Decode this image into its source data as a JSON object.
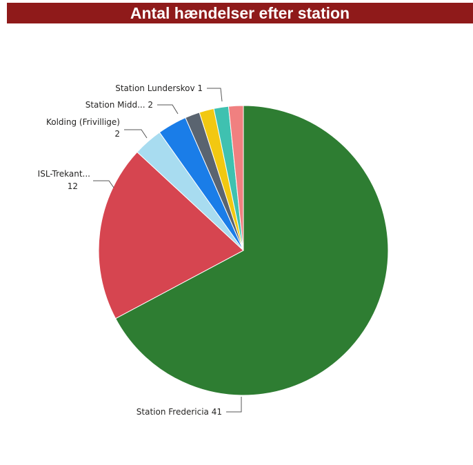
{
  "chart_data": {
    "type": "pie",
    "title": "Antal hændelser efter station",
    "slices": [
      {
        "label": "Station Fredericia",
        "value": 41,
        "color": "#2e7d32",
        "label_text": "Station Fredericia 41",
        "label_line2": ""
      },
      {
        "label": "ISL-Trekant...",
        "value": 12,
        "color": "#d64550",
        "label_text": "ISL-Trekant...",
        "label_line2": "12"
      },
      {
        "label": "Kolding (Frivillige)",
        "value": 2,
        "color": "#a8dcf0",
        "label_text": "Kolding (Frivillige)",
        "label_line2": "2"
      },
      {
        "label": "Station Midd...",
        "value": 2,
        "color": "#1a7de8",
        "label_text": "Station Midd... 2",
        "label_line2": ""
      },
      {
        "label": "",
        "value": 1,
        "color": "#5a6470",
        "label_text": "",
        "label_line2": ""
      },
      {
        "label": "",
        "value": 1,
        "color": "#f2c811",
        "label_text": "",
        "label_line2": ""
      },
      {
        "label": "Station Lunderskov",
        "value": 1,
        "color": "#3fc1b0",
        "label_text": "Station Lunderskov 1",
        "label_line2": ""
      },
      {
        "label": "",
        "value": 1,
        "color": "#f08080",
        "label_text": "",
        "label_line2": ""
      }
    ]
  }
}
